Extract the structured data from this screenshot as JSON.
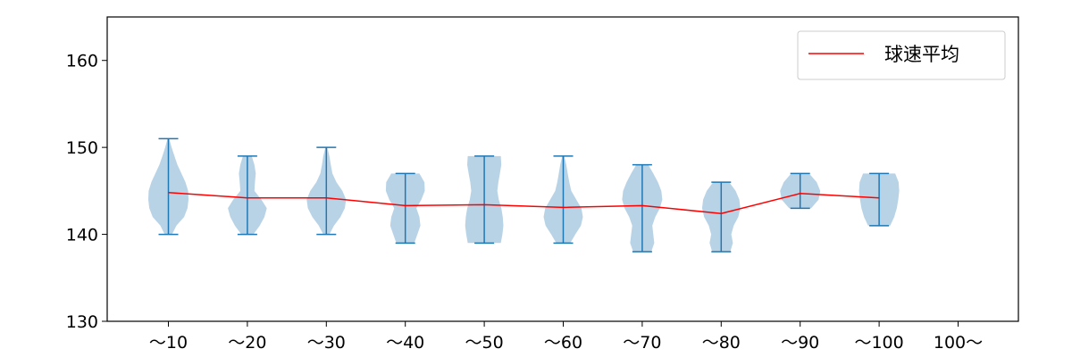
{
  "chart_data": {
    "type": "violin",
    "categories": [
      "～10",
      "～20",
      "～30",
      "～40",
      "～50",
      "～60",
      "～70",
      "～80",
      "～90",
      "～100",
      "100～"
    ],
    "ylim": [
      130,
      165
    ],
    "yticks": [
      130,
      140,
      150,
      160
    ],
    "xlabel": "",
    "ylabel": "",
    "grid": false,
    "legend_position": "top-right",
    "violin_color": "#a8c8e0",
    "range_color": "#1f77b4",
    "mean_line": {
      "name": "球速平均",
      "color": "#ff0000",
      "values": [
        144.8,
        144.2,
        144.2,
        143.3,
        143.4,
        143.1,
        143.3,
        142.4,
        144.7,
        144.2,
        null
      ]
    },
    "violins": [
      {
        "min": 140,
        "max": 151,
        "profile": [
          [
            140,
            0.18
          ],
          [
            141,
            0.4
          ],
          [
            142,
            0.78
          ],
          [
            143,
            0.95
          ],
          [
            144,
            1.0
          ],
          [
            145,
            0.98
          ],
          [
            146,
            0.85
          ],
          [
            147,
            0.65
          ],
          [
            148,
            0.45
          ],
          [
            149,
            0.3
          ],
          [
            150,
            0.16
          ],
          [
            151,
            0.04
          ]
        ]
      },
      {
        "min": 140,
        "max": 149,
        "profile": [
          [
            140,
            0.3
          ],
          [
            141,
            0.62
          ],
          [
            142,
            0.85
          ],
          [
            143,
            0.97
          ],
          [
            144,
            0.7
          ],
          [
            145,
            0.35
          ],
          [
            146,
            0.38
          ],
          [
            147,
            0.42
          ],
          [
            148,
            0.35
          ],
          [
            149,
            0.22
          ]
        ]
      },
      {
        "min": 140,
        "max": 150,
        "profile": [
          [
            140,
            0.15
          ],
          [
            141,
            0.38
          ],
          [
            142,
            0.7
          ],
          [
            143,
            0.92
          ],
          [
            144,
            0.98
          ],
          [
            145,
            0.8
          ],
          [
            146,
            0.5
          ],
          [
            147,
            0.3
          ],
          [
            148,
            0.22
          ],
          [
            149,
            0.15
          ],
          [
            150,
            0.05
          ]
        ]
      },
      {
        "min": 139,
        "max": 147,
        "profile": [
          [
            139,
            0.45
          ],
          [
            140,
            0.6
          ],
          [
            141,
            0.75
          ],
          [
            142,
            0.7
          ],
          [
            143,
            0.55
          ],
          [
            144,
            0.8
          ],
          [
            145,
            0.97
          ],
          [
            146,
            0.95
          ],
          [
            147,
            0.7
          ]
        ]
      },
      {
        "min": 139,
        "max": 149,
        "profile": [
          [
            139,
            0.82
          ],
          [
            140,
            0.9
          ],
          [
            141,
            0.95
          ],
          [
            142,
            0.92
          ],
          [
            143,
            0.85
          ],
          [
            144,
            0.72
          ],
          [
            145,
            0.65
          ],
          [
            146,
            0.7
          ],
          [
            147,
            0.78
          ],
          [
            148,
            0.85
          ],
          [
            149,
            0.82
          ]
        ]
      },
      {
        "min": 139,
        "max": 149,
        "profile": [
          [
            139,
            0.35
          ],
          [
            140,
            0.6
          ],
          [
            141,
            0.88
          ],
          [
            142,
            0.98
          ],
          [
            143,
            0.9
          ],
          [
            144,
            0.65
          ],
          [
            145,
            0.4
          ],
          [
            146,
            0.3
          ],
          [
            147,
            0.22
          ],
          [
            148,
            0.15
          ],
          [
            149,
            0.05
          ]
        ]
      },
      {
        "min": 138,
        "max": 148,
        "profile": [
          [
            138,
            0.45
          ],
          [
            139,
            0.6
          ],
          [
            140,
            0.55
          ],
          [
            141,
            0.5
          ],
          [
            142,
            0.65
          ],
          [
            143,
            0.88
          ],
          [
            144,
            1.0
          ],
          [
            145,
            0.95
          ],
          [
            146,
            0.78
          ],
          [
            147,
            0.55
          ],
          [
            148,
            0.3
          ]
        ]
      },
      {
        "min": 138,
        "max": 146,
        "profile": [
          [
            138,
            0.45
          ],
          [
            139,
            0.58
          ],
          [
            140,
            0.5
          ],
          [
            141,
            0.62
          ],
          [
            142,
            0.85
          ],
          [
            143,
            0.95
          ],
          [
            144,
            0.9
          ],
          [
            145,
            0.72
          ],
          [
            146,
            0.4
          ]
        ]
      },
      {
        "min": 143,
        "max": 147,
        "profile": [
          [
            143,
            0.55
          ],
          [
            144,
            0.92
          ],
          [
            145,
            1.0
          ],
          [
            146,
            0.82
          ],
          [
            147,
            0.45
          ]
        ]
      },
      {
        "min": 141,
        "max": 147,
        "profile": [
          [
            141,
            0.55
          ],
          [
            142,
            0.75
          ],
          [
            143,
            0.88
          ],
          [
            144,
            0.95
          ],
          [
            145,
            1.0
          ],
          [
            146,
            0.97
          ],
          [
            147,
            0.8
          ]
        ]
      },
      null
    ]
  }
}
